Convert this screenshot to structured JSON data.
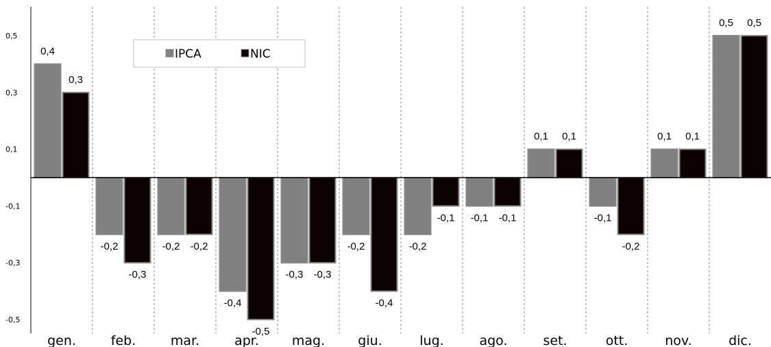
{
  "chart_data": {
    "type": "bar",
    "categories": [
      "gen.",
      "feb.",
      "mar.",
      "apr.",
      "mag.",
      "giu.",
      "lug.",
      "ago.",
      "set.",
      "ott.",
      "nov.",
      "dic."
    ],
    "series": [
      {
        "name": "IPCA",
        "color": "#808080",
        "values": [
          0.4,
          -0.2,
          -0.2,
          -0.4,
          -0.3,
          -0.2,
          -0.2,
          -0.1,
          0.1,
          -0.1,
          0.1,
          0.5
        ],
        "labels": [
          "0,4",
          "-0,2",
          "-0,2",
          "-0,4",
          "-0,3",
          "-0,2",
          "-0,2",
          "-0,1",
          "0,1",
          "-0,1",
          "0,1",
          "0,5"
        ]
      },
      {
        "name": "NIC",
        "color": "#0d0000",
        "values": [
          0.3,
          -0.3,
          -0.2,
          -0.5,
          -0.3,
          -0.4,
          -0.1,
          -0.1,
          0.1,
          -0.2,
          0.1,
          0.5
        ],
        "labels": [
          "0,3",
          "-0,3",
          "-0,2",
          "-0,5",
          "-0,3",
          "-0,4",
          "-0,1",
          "-0,1",
          "0,1",
          "-0,2",
          "0,1",
          "0,5"
        ]
      }
    ],
    "yticks": [
      0.5,
      0.3,
      0.1,
      -0.1,
      -0.3,
      -0.5
    ],
    "ytick_labels": [
      "0,5",
      "0,3",
      "0,1",
      "-0,1",
      "-0,3",
      "-0,5"
    ],
    "ylim": [
      -0.5,
      0.5
    ],
    "title": "",
    "xlabel": "",
    "ylabel": "",
    "grid": "vertical dashed separators",
    "legend": {
      "placement": "top-left",
      "entries": [
        "IPCA",
        "NIC"
      ]
    }
  }
}
